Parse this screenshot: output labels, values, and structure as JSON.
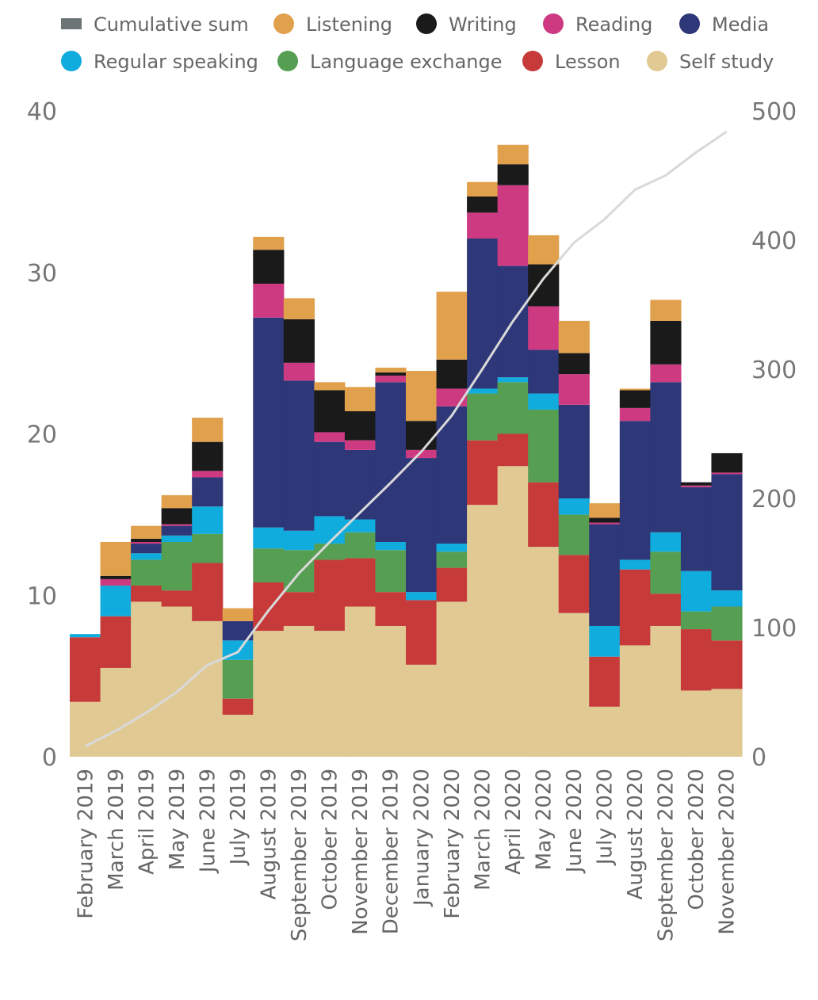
{
  "chart_data": {
    "type": "bar",
    "stacked": true,
    "categories": [
      "February 2019",
      "March 2019",
      "April 2019",
      "May 2019",
      "June 2019",
      "July 2019",
      "August 2019",
      "September 2019",
      "October 2019",
      "November 2019",
      "December 2019",
      "January 2020",
      "February 2020",
      "March 2020",
      "April 2020",
      "May 2020",
      "June 2020",
      "July 2020",
      "August 2020",
      "September 2020",
      "October 2020",
      "November 2020"
    ],
    "series": [
      {
        "name": "Self study",
        "color": "#E1C994",
        "values": [
          3.4,
          5.5,
          9.6,
          9.3,
          8.4,
          2.6,
          7.8,
          8.1,
          7.8,
          9.3,
          8.1,
          5.7,
          9.6,
          15.6,
          18.0,
          13.0,
          8.9,
          3.1,
          6.9,
          8.1,
          4.1,
          4.2
        ]
      },
      {
        "name": "Lesson",
        "color": "#C63A3A",
        "values": [
          4.0,
          3.2,
          1.0,
          1.0,
          3.6,
          1.0,
          3.0,
          2.1,
          4.4,
          3.0,
          2.1,
          4.0,
          2.1,
          4.0,
          2.0,
          4.0,
          3.6,
          3.1,
          4.7,
          2.0,
          3.8,
          3.0
        ]
      },
      {
        "name": "Language exchange",
        "color": "#569E52",
        "values": [
          0.0,
          0.0,
          1.6,
          3.0,
          1.8,
          2.4,
          2.1,
          2.6,
          1.0,
          1.6,
          2.6,
          0.0,
          1.0,
          2.9,
          3.2,
          4.5,
          2.5,
          0.0,
          0.0,
          2.6,
          1.1,
          2.1
        ]
      },
      {
        "name": "Regular speaking",
        "color": "#10ACDD",
        "values": [
          0.2,
          1.9,
          0.4,
          0.4,
          1.7,
          1.2,
          1.3,
          1.2,
          1.7,
          0.8,
          0.5,
          0.5,
          0.5,
          0.3,
          0.3,
          1.0,
          1.0,
          1.9,
          0.6,
          1.2,
          2.5,
          1.0
        ]
      },
      {
        "name": "Media",
        "color": "#2E3778",
        "values": [
          0.0,
          0.0,
          0.6,
          0.6,
          1.8,
          1.2,
          13.0,
          9.3,
          4.6,
          4.3,
          9.9,
          8.3,
          8.5,
          9.3,
          6.9,
          2.7,
          5.8,
          6.3,
          8.6,
          9.3,
          5.2,
          7.2
        ]
      },
      {
        "name": "Reading",
        "color": "#CE3A82",
        "values": [
          0.0,
          0.4,
          0.1,
          0.1,
          0.4,
          0.0,
          2.1,
          1.1,
          0.6,
          0.6,
          0.4,
          0.5,
          1.1,
          1.6,
          5.0,
          2.7,
          1.9,
          0.1,
          0.8,
          1.1,
          0.1,
          0.1
        ]
      },
      {
        "name": "Writing",
        "color": "#1A1A1A",
        "values": [
          0.0,
          0.2,
          0.2,
          1.0,
          1.8,
          0.0,
          2.1,
          2.7,
          2.6,
          1.8,
          0.2,
          1.8,
          1.8,
          1.0,
          1.3,
          2.6,
          1.3,
          0.3,
          1.1,
          2.7,
          0.2,
          1.2
        ]
      },
      {
        "name": "Listening",
        "color": "#E0A04C",
        "values": [
          0.0,
          2.1,
          0.8,
          0.8,
          1.5,
          0.8,
          0.8,
          1.3,
          0.5,
          1.5,
          0.3,
          3.1,
          4.2,
          0.9,
          1.2,
          1.8,
          2.0,
          0.9,
          0.1,
          1.3,
          0.0,
          0.0
        ]
      }
    ],
    "cumulative": {
      "name": "Cumulative sum",
      "color": "#D9D9D9",
      "legend_color": "#6B7575",
      "values": [
        8,
        20,
        34,
        50,
        71,
        81,
        113,
        142,
        166,
        189,
        212,
        236,
        264,
        300,
        337,
        370,
        398,
        416,
        439,
        450,
        468,
        484
      ]
    },
    "y_left": {
      "range": [
        0,
        40
      ],
      "ticks": [
        "0",
        "10",
        "20",
        "30",
        "40"
      ]
    },
    "y_right": {
      "range": [
        0,
        500
      ],
      "ticks": [
        "0",
        "100",
        "200",
        "300",
        "400",
        "500"
      ]
    },
    "legend": {
      "position": "top",
      "items": [
        "Cumulative sum",
        "Listening",
        "Writing",
        "Reading",
        "Media",
        "Regular speaking",
        "Language exchange",
        "Lesson",
        "Self study"
      ]
    },
    "grid": false,
    "title": "",
    "xlabel": "",
    "ylabel": ""
  }
}
